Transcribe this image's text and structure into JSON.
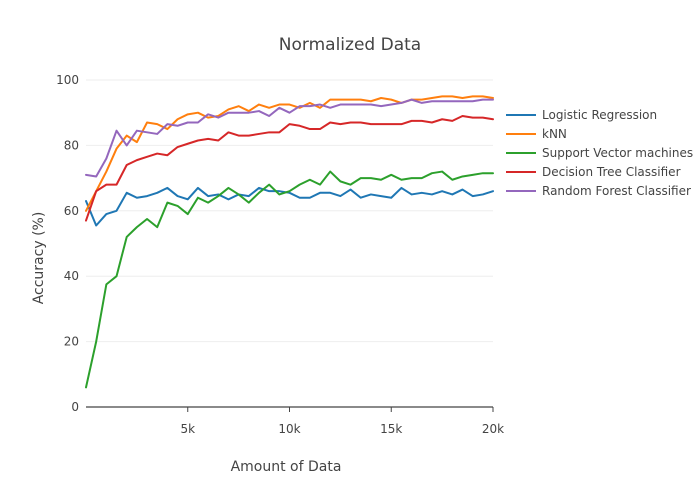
{
  "chart_data": {
    "type": "line",
    "title": "Normalized Data",
    "xlabel": "Amount of Data",
    "ylabel": "Accuracy (%)",
    "xlim": [
      0,
      20000
    ],
    "ylim": [
      0,
      100
    ],
    "x_ticks": [
      5000,
      10000,
      15000,
      20000
    ],
    "x_tick_labels": [
      "5k",
      "10k",
      "15k",
      "20k"
    ],
    "y_ticks": [
      0,
      20,
      40,
      60,
      80,
      100
    ],
    "y_tick_labels": [
      "0",
      "20",
      "40",
      "60",
      "80",
      "100"
    ],
    "grid": "horizontal",
    "legend_position": "right",
    "x": [
      0,
      500,
      1000,
      1500,
      2000,
      2500,
      3000,
      3500,
      4000,
      4500,
      5000,
      5500,
      6000,
      6500,
      7000,
      7500,
      8000,
      8500,
      9000,
      9500,
      10000,
      10500,
      11000,
      11500,
      12000,
      12500,
      13000,
      13500,
      14000,
      14500,
      15000,
      15500,
      16000,
      16500,
      17000,
      17500,
      18000,
      18500,
      19000,
      19500,
      20000
    ],
    "series": [
      {
        "name": "Logistic Regression",
        "color": "#1f77b4",
        "values": [
          63,
          55.5,
          59,
          60,
          65.5,
          64,
          64.5,
          65.5,
          67,
          64.5,
          63.5,
          67,
          64.5,
          65,
          63.5,
          65,
          64.5,
          67,
          66,
          66,
          65.5,
          64,
          64,
          65.5,
          65.5,
          64.5,
          66.5,
          64,
          65,
          64.5,
          64,
          67,
          65,
          65.5,
          65,
          66,
          65,
          66.5,
          64.5,
          65,
          66
        ]
      },
      {
        "name": "kNN",
        "color": "#ff7f0e",
        "values": [
          60,
          66,
          72,
          79,
          83,
          81,
          87,
          86.5,
          85,
          88,
          89.5,
          90,
          88.5,
          89,
          91,
          92,
          90.5,
          92.5,
          91.5,
          92.5,
          92.5,
          91.5,
          93,
          91.5,
          94,
          94,
          94,
          94,
          93.5,
          94.5,
          94,
          93,
          94,
          94,
          94.5,
          95,
          95,
          94.5,
          95,
          95,
          94.5
        ]
      },
      {
        "name": "Support Vector machines",
        "color": "#2ca02c",
        "values": [
          6,
          20,
          37.5,
          40,
          52,
          55,
          57.5,
          55,
          62.5,
          61.5,
          59,
          64,
          62.5,
          64.5,
          67,
          65,
          62.5,
          65.5,
          68,
          65,
          66,
          68,
          69.5,
          68,
          72,
          69,
          68,
          70,
          70,
          69.5,
          71,
          69.5,
          70,
          70,
          71.5,
          72,
          69.5,
          70.5,
          71,
          71.5,
          71.5
        ]
      },
      {
        "name": "Decision Tree Classifier",
        "color": "#d62728",
        "values": [
          57,
          66,
          68,
          68,
          74,
          75.5,
          76.5,
          77.5,
          77,
          79.5,
          80.5,
          81.5,
          82,
          81.5,
          84,
          83,
          83,
          83.5,
          84,
          84,
          86.5,
          86,
          85,
          85,
          87,
          86.5,
          87,
          87,
          86.5,
          86.5,
          86.5,
          86.5,
          87.5,
          87.5,
          87,
          88,
          87.5,
          89,
          88.5,
          88.5,
          88
        ]
      },
      {
        "name": "Random Forest Classifier",
        "color": "#9467bd",
        "values": [
          71,
          70.5,
          76,
          84.5,
          80,
          84.5,
          84,
          83.5,
          86.5,
          86,
          87,
          87,
          89.5,
          88.5,
          90,
          90,
          90,
          90.5,
          89,
          91.5,
          90,
          92,
          92,
          92.5,
          91.5,
          92.5,
          92.5,
          92.5,
          92.5,
          92,
          92.5,
          93,
          94,
          93,
          93.5,
          93.5,
          93.5,
          93.5,
          93.5,
          94,
          94
        ]
      }
    ]
  }
}
